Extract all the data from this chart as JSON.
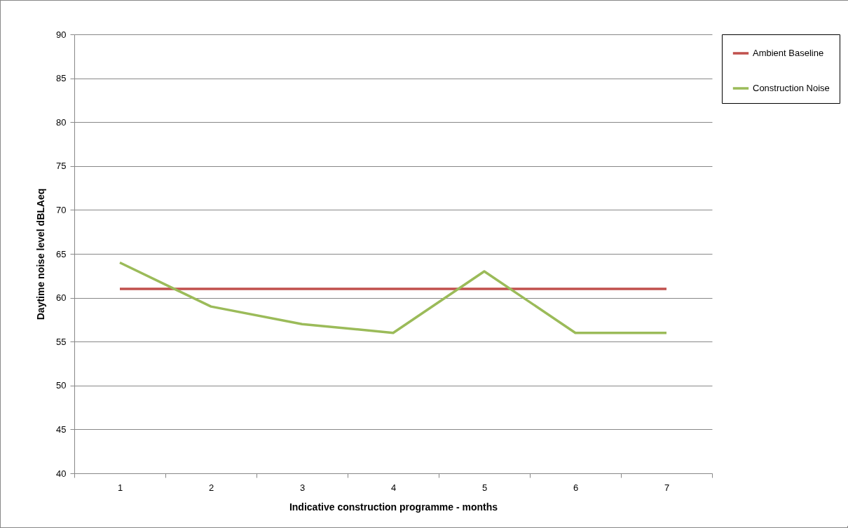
{
  "chart_data": {
    "type": "line",
    "xlabel": "Indicative construction programme - months",
    "ylabel": "Daytime noise level dBLAeq",
    "categories": [
      "1",
      "2",
      "3",
      "4",
      "5",
      "6",
      "7"
    ],
    "series": [
      {
        "name": "Ambient Baseline",
        "color": "#c0504d",
        "values": [
          61,
          61,
          61,
          61,
          61,
          61,
          61
        ]
      },
      {
        "name": "Construction Noise",
        "color": "#9bbb59",
        "values": [
          64,
          59,
          57,
          56,
          63,
          56,
          56
        ]
      }
    ],
    "ylim": [
      40,
      90
    ],
    "yticks": [
      40,
      45,
      50,
      55,
      60,
      65,
      70,
      75,
      80,
      85,
      90
    ],
    "grid": "y",
    "legend": "right",
    "marker": "none",
    "line_style": "solid"
  }
}
